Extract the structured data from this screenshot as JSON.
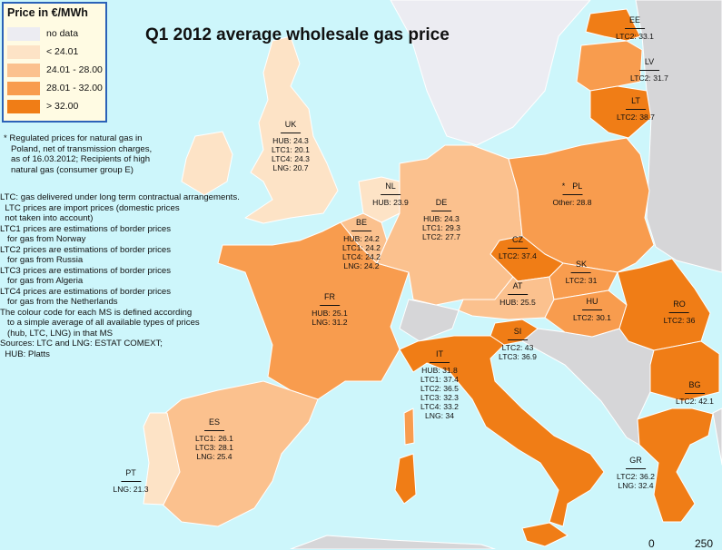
{
  "title": "Q1 2012 average wholesale gas price",
  "legend": {
    "title": "Price  in €/MWh",
    "items": [
      {
        "label": "no data",
        "color": "#ececf2"
      },
      {
        "label": "< 24.01",
        "color": "#fde3c6"
      },
      {
        "label": "24.01 - 28.00",
        "color": "#fbc18e"
      },
      {
        "label": "28.01 - 32.00",
        "color": "#f89c4e"
      },
      {
        "label": "> 32.00",
        "color": "#f07d16"
      }
    ]
  },
  "colors": {
    "sea": "#cdf6fb",
    "non_eu": "#d6d6d8"
  },
  "notes": {
    "poland": "* Regulated prices for natural gas in\n   Poland, net of transmission charges,\n   as of 16.03.2012; Recipients of high\n   natural gas (consumer group E)",
    "definitions": "LTC: gas delivered under long term contractual arrangements.\n  LTC prices are import prices (domestic prices\n  not taken into account)\nLTC1 prices are estimations of border prices\n   for gas from Norway\nLTC2 prices are estimations of border prices\n   for gas from Russia\nLTC3 prices are estimations of border prices\n   for gas from Algeria\nLTC4 prices are estimations of border prices\n   for gas from the Netherlands\nThe colour code for each MS is defined according\n   to a simple average of all available types of prices\n   (hub, LTC, LNG) in that MS\nSources: LTC and LNG: ESTAT COMEXT;\n  HUB: Platts"
  },
  "countries": [
    {
      "code": "UK",
      "class": "< 24.01",
      "lines": [
        "HUB: 24.3",
        "LTC1: 20.1",
        "LTC4: 24.3",
        "LNG: 20.7"
      ]
    },
    {
      "code": "NL",
      "class": "< 24.01",
      "lines": [
        "HUB: 23.9"
      ]
    },
    {
      "code": "BE",
      "class": "24.01 - 28.00",
      "lines": [
        "HUB: 24.2",
        "LTC1: 24.2",
        "LTC4: 24.2",
        "LNG: 24.2"
      ]
    },
    {
      "code": "DE",
      "class": "24.01 - 28.00",
      "lines": [
        "HUB: 24.3",
        "LTC1: 29.3",
        "LTC2: 27.7"
      ]
    },
    {
      "code": "FR",
      "class": "28.01 - 32.00",
      "lines": [
        "HUB: 25.1",
        "LNG: 31.2"
      ]
    },
    {
      "code": "ES",
      "class": "24.01 - 28.00",
      "lines": [
        "LTC1: 26.1",
        "LTC3: 28.1",
        "LNG: 25.4"
      ]
    },
    {
      "code": "PT",
      "class": "< 24.01",
      "lines": [
        "LNG: 21.3"
      ]
    },
    {
      "code": "IT",
      "class": "> 32.00",
      "lines": [
        "HUB: 31.8",
        "LTC1: 37.4",
        "LTC2: 36.5",
        "LTC3: 32.3",
        "LTC4: 33.2",
        "LNG: 34"
      ]
    },
    {
      "code": "AT",
      "class": "24.01 - 28.00",
      "lines": [
        "HUB: 25.5"
      ]
    },
    {
      "code": "CZ",
      "class": "> 32.00",
      "lines": [
        "LTC2: 37.4"
      ]
    },
    {
      "code": "PL",
      "prefix": "*",
      "class": "28.01 - 32.00",
      "lines": [
        "Other: 28.8"
      ]
    },
    {
      "code": "SK",
      "class": "28.01 - 32.00",
      "lines": [
        "LTC2: 31"
      ]
    },
    {
      "code": "HU",
      "class": "28.01 - 32.00",
      "lines": [
        "LTC2: 30.1"
      ]
    },
    {
      "code": "SI",
      "class": "> 32.00",
      "lines": [
        "LTC2: 43",
        "LTC3: 36.9"
      ]
    },
    {
      "code": "RO",
      "class": "> 32.00",
      "lines": [
        "LTC2: 36"
      ]
    },
    {
      "code": "BG",
      "class": "> 32.00",
      "lines": [
        "LTC2: 42.1"
      ]
    },
    {
      "code": "GR",
      "class": "> 32.00",
      "lines": [
        "LTC2: 36.2",
        "LNG: 32.4"
      ]
    },
    {
      "code": "EE",
      "class": "> 32.00",
      "lines": [
        "LTC2: 33.1"
      ]
    },
    {
      "code": "LV",
      "class": "28.01 - 32.00",
      "lines": [
        "LTC2: 31.7"
      ]
    },
    {
      "code": "LT",
      "class": "> 32.00",
      "lines": [
        "LTC2: 38.7"
      ]
    }
  ],
  "scale": {
    "start": "0",
    "end": "250"
  }
}
